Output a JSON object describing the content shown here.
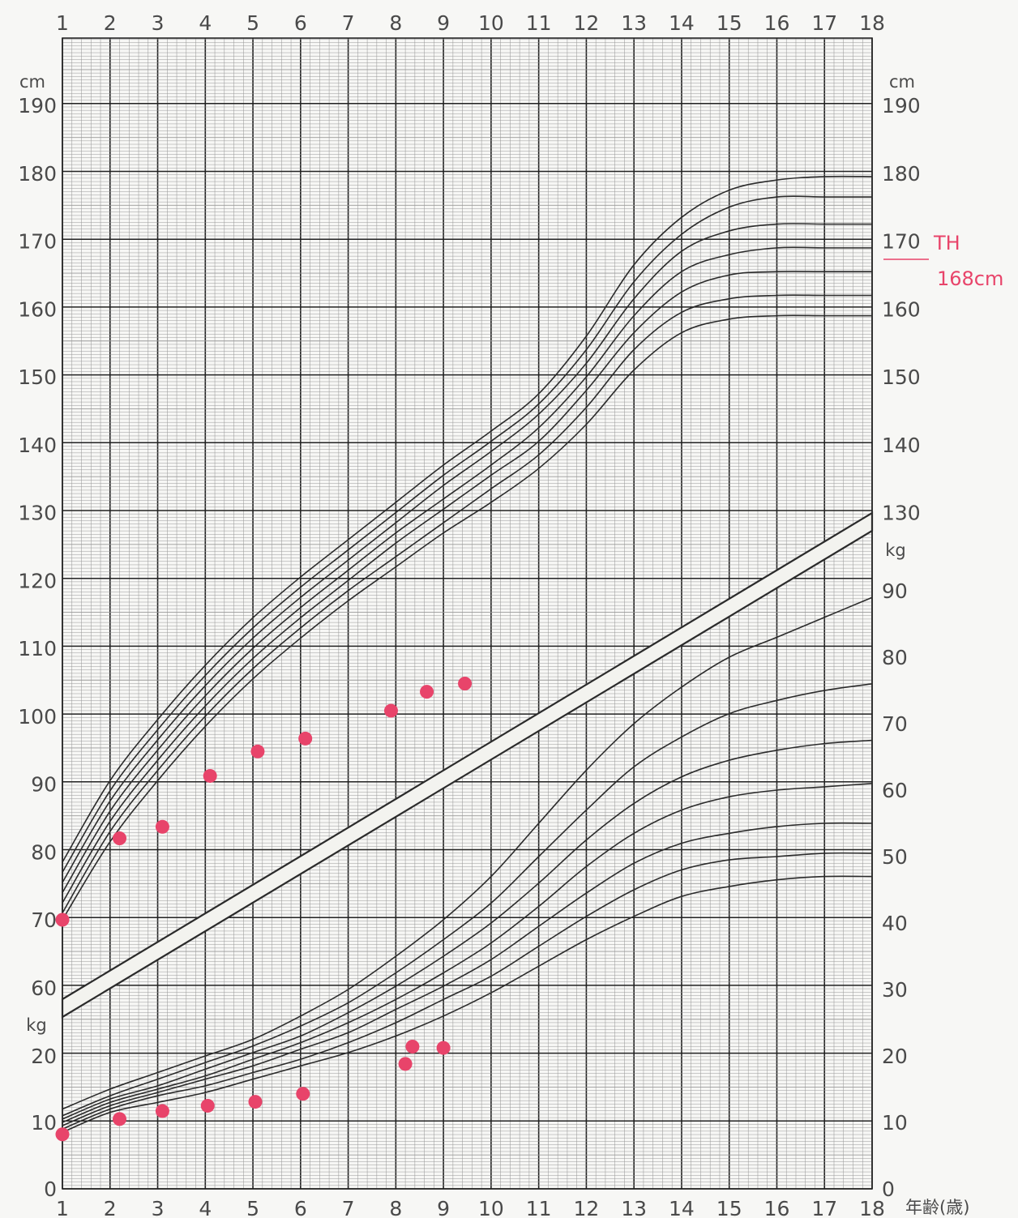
{
  "chart_data": {
    "type": "line",
    "title": "",
    "x_axis": {
      "label": "年齢(歳)",
      "range": [
        1,
        18
      ],
      "ticks": [
        "1",
        "2",
        "3",
        "4",
        "5",
        "6",
        "7",
        "8",
        "9",
        "10",
        "11",
        "12",
        "13",
        "14",
        "15",
        "16",
        "17",
        "18"
      ]
    },
    "height_axis": {
      "unit": "cm",
      "range": [
        60,
        190
      ],
      "ticks": [
        "60",
        "70",
        "80",
        "90",
        "100",
        "110",
        "120",
        "130",
        "140",
        "150",
        "160",
        "170",
        "180",
        "190"
      ],
      "right_ticks": [
        "130",
        "140",
        "150",
        "160",
        "170",
        "180",
        "190"
      ]
    },
    "weight_axis": {
      "unit": "kg",
      "range": [
        0,
        90
      ],
      "ticks": [
        "0",
        "10",
        "20"
      ],
      "right_ticks": [
        "0",
        "10",
        "20",
        "30",
        "40",
        "50",
        "60",
        "70",
        "80",
        "90"
      ]
    },
    "grid": true,
    "height_percentile_curves": [
      [
        [
          1,
          78.5
        ],
        [
          2,
          90.5
        ],
        [
          3,
          99.5
        ],
        [
          4,
          107.5
        ],
        [
          5,
          114.5
        ],
        [
          6,
          120.5
        ],
        [
          7,
          126
        ],
        [
          8,
          131.5
        ],
        [
          9,
          137
        ],
        [
          10,
          142
        ],
        [
          11,
          147.5
        ],
        [
          12,
          156
        ],
        [
          13,
          166.5
        ],
        [
          14,
          173.5
        ],
        [
          15,
          177.5
        ],
        [
          16,
          179
        ],
        [
          17,
          179.5
        ],
        [
          18,
          179.5
        ]
      ],
      [
        [
          1,
          77
        ],
        [
          2,
          89
        ],
        [
          3,
          98
        ],
        [
          4,
          106
        ],
        [
          5,
          113
        ],
        [
          6,
          119
        ],
        [
          7,
          124.5
        ],
        [
          8,
          130
        ],
        [
          9,
          135.5
        ],
        [
          10,
          140.5
        ],
        [
          11,
          146
        ],
        [
          12,
          154
        ],
        [
          13,
          164
        ],
        [
          14,
          171
        ],
        [
          15,
          175
        ],
        [
          16,
          176.5
        ],
        [
          17,
          176.5
        ],
        [
          18,
          176.5
        ]
      ],
      [
        [
          1,
          75.5
        ],
        [
          2,
          87.5
        ],
        [
          3,
          96.5
        ],
        [
          4,
          104.5
        ],
        [
          5,
          111.5
        ],
        [
          6,
          117.5
        ],
        [
          7,
          123
        ],
        [
          8,
          128.5
        ],
        [
          9,
          134
        ],
        [
          10,
          139
        ],
        [
          11,
          144.5
        ],
        [
          12,
          152
        ],
        [
          13,
          161.5
        ],
        [
          14,
          168.5
        ],
        [
          15,
          171.5
        ],
        [
          16,
          172.5
        ],
        [
          17,
          172.5
        ],
        [
          18,
          172.5
        ]
      ],
      [
        [
          1,
          74
        ],
        [
          2,
          86
        ],
        [
          3,
          95
        ],
        [
          4,
          103
        ],
        [
          5,
          110
        ],
        [
          6,
          116
        ],
        [
          7,
          121.5
        ],
        [
          8,
          127
        ],
        [
          9,
          132
        ],
        [
          10,
          137
        ],
        [
          11,
          142.5
        ],
        [
          12,
          150
        ],
        [
          13,
          159
        ],
        [
          14,
          165.5
        ],
        [
          15,
          168
        ],
        [
          16,
          169
        ],
        [
          17,
          169
        ],
        [
          18,
          169
        ]
      ],
      [
        [
          1,
          72.5
        ],
        [
          2,
          84.5
        ],
        [
          3,
          93.5
        ],
        [
          4,
          101.5
        ],
        [
          5,
          108.5
        ],
        [
          6,
          114.5
        ],
        [
          7,
          120
        ],
        [
          8,
          125.5
        ],
        [
          9,
          130.5
        ],
        [
          10,
          135.5
        ],
        [
          11,
          140.5
        ],
        [
          12,
          148
        ],
        [
          13,
          156.5
        ],
        [
          14,
          162.5
        ],
        [
          15,
          165
        ],
        [
          16,
          165.5
        ],
        [
          17,
          165.5
        ],
        [
          18,
          165.5
        ]
      ],
      [
        [
          1,
          71
        ],
        [
          2,
          83
        ],
        [
          3,
          92
        ],
        [
          4,
          100
        ],
        [
          5,
          107
        ],
        [
          6,
          113
        ],
        [
          7,
          118.5
        ],
        [
          8,
          123.5
        ],
        [
          9,
          128.5
        ],
        [
          10,
          133.5
        ],
        [
          11,
          138.5
        ],
        [
          12,
          145.5
        ],
        [
          13,
          154
        ],
        [
          14,
          159.5
        ],
        [
          15,
          161.5
        ],
        [
          16,
          162
        ],
        [
          17,
          162
        ],
        [
          18,
          162
        ]
      ],
      [
        [
          1,
          70
        ],
        [
          2,
          81.5
        ],
        [
          3,
          90.5
        ],
        [
          4,
          98.5
        ],
        [
          5,
          105.5
        ],
        [
          6,
          111.5
        ],
        [
          7,
          117
        ],
        [
          8,
          122
        ],
        [
          9,
          127
        ],
        [
          10,
          131.5
        ],
        [
          11,
          136.5
        ],
        [
          12,
          143
        ],
        [
          13,
          151
        ],
        [
          14,
          156.5
        ],
        [
          15,
          158.5
        ],
        [
          16,
          159
        ],
        [
          17,
          159
        ],
        [
          18,
          159
        ]
      ]
    ],
    "weight_percentile_curves": [
      [
        [
          1,
          12
        ],
        [
          2,
          15
        ],
        [
          3,
          17.5
        ],
        [
          4,
          20
        ],
        [
          5,
          22.5
        ],
        [
          6,
          26
        ],
        [
          7,
          30
        ],
        [
          8,
          35
        ],
        [
          9,
          40.5
        ],
        [
          10,
          47
        ],
        [
          11,
          55
        ],
        [
          12,
          63
        ],
        [
          13,
          70
        ],
        [
          14,
          75.5
        ],
        [
          15,
          80
        ],
        [
          16,
          83
        ],
        [
          17,
          86
        ],
        [
          18,
          89
        ]
      ],
      [
        [
          1,
          11
        ],
        [
          2,
          14
        ],
        [
          3,
          16.5
        ],
        [
          4,
          19
        ],
        [
          5,
          21.5
        ],
        [
          6,
          24.5
        ],
        [
          7,
          28
        ],
        [
          8,
          32.5
        ],
        [
          9,
          37.5
        ],
        [
          10,
          43
        ],
        [
          11,
          50
        ],
        [
          12,
          57
        ],
        [
          13,
          63.5
        ],
        [
          14,
          68
        ],
        [
          15,
          71.5
        ],
        [
          16,
          73.5
        ],
        [
          17,
          75
        ],
        [
          18,
          76
        ]
      ],
      [
        [
          1,
          10.5
        ],
        [
          2,
          13.5
        ],
        [
          3,
          15.5
        ],
        [
          4,
          18
        ],
        [
          5,
          20.5
        ],
        [
          6,
          23
        ],
        [
          7,
          26.5
        ],
        [
          8,
          30.5
        ],
        [
          9,
          35
        ],
        [
          10,
          40
        ],
        [
          11,
          46
        ],
        [
          12,
          52.5
        ],
        [
          13,
          58
        ],
        [
          14,
          62
        ],
        [
          15,
          64.5
        ],
        [
          16,
          66
        ],
        [
          17,
          67
        ],
        [
          18,
          67.5
        ]
      ],
      [
        [
          1,
          10
        ],
        [
          2,
          13
        ],
        [
          3,
          15
        ],
        [
          4,
          17
        ],
        [
          5,
          19.5
        ],
        [
          6,
          22
        ],
        [
          7,
          25
        ],
        [
          8,
          28.5
        ],
        [
          9,
          32.5
        ],
        [
          10,
          37
        ],
        [
          11,
          42.5
        ],
        [
          12,
          48.5
        ],
        [
          13,
          53.5
        ],
        [
          14,
          57
        ],
        [
          15,
          59
        ],
        [
          16,
          60
        ],
        [
          17,
          60.5
        ],
        [
          18,
          61
        ]
      ],
      [
        [
          1,
          9.5
        ],
        [
          2,
          12.5
        ],
        [
          3,
          14.5
        ],
        [
          4,
          16.5
        ],
        [
          5,
          18.5
        ],
        [
          6,
          21
        ],
        [
          7,
          23.5
        ],
        [
          8,
          27
        ],
        [
          9,
          30.5
        ],
        [
          10,
          34.5
        ],
        [
          11,
          39.5
        ],
        [
          12,
          44.5
        ],
        [
          13,
          49
        ],
        [
          14,
          52
        ],
        [
          15,
          53.5
        ],
        [
          16,
          54.5
        ],
        [
          17,
          55
        ],
        [
          18,
          55
        ]
      ],
      [
        [
          1,
          9
        ],
        [
          2,
          12
        ],
        [
          3,
          14
        ],
        [
          4,
          15.5
        ],
        [
          5,
          17.5
        ],
        [
          6,
          19.5
        ],
        [
          7,
          22
        ],
        [
          8,
          25
        ],
        [
          9,
          28.5
        ],
        [
          10,
          32
        ],
        [
          11,
          36.5
        ],
        [
          12,
          41
        ],
        [
          13,
          45
        ],
        [
          14,
          48
        ],
        [
          15,
          49.5
        ],
        [
          16,
          50
        ],
        [
          17,
          50.5
        ],
        [
          18,
          50.5
        ]
      ],
      [
        [
          1,
          8.5
        ],
        [
          2,
          11.5
        ],
        [
          3,
          13
        ],
        [
          4,
          14.5
        ],
        [
          5,
          16.5
        ],
        [
          6,
          18.5
        ],
        [
          7,
          20.5
        ],
        [
          8,
          23
        ],
        [
          9,
          26
        ],
        [
          10,
          29.5
        ],
        [
          11,
          33.5
        ],
        [
          12,
          37.5
        ],
        [
          13,
          41
        ],
        [
          14,
          44
        ],
        [
          15,
          45.5
        ],
        [
          16,
          46.5
        ],
        [
          17,
          47
        ],
        [
          18,
          47
        ]
      ]
    ],
    "height_points": [
      [
        1,
        70
      ],
      [
        2.2,
        82
      ],
      [
        3.1,
        83.7
      ],
      [
        4.1,
        91.2
      ],
      [
        5.1,
        94.8
      ],
      [
        6.1,
        96.7
      ],
      [
        7.9,
        100.8
      ],
      [
        8.65,
        103.6
      ],
      [
        9.45,
        104.8
      ]
    ],
    "weight_points": [
      [
        1,
        8.2
      ],
      [
        2.2,
        10.5
      ],
      [
        3.1,
        11.7
      ],
      [
        4.05,
        12.5
      ],
      [
        5.05,
        13.1
      ],
      [
        6.05,
        14.3
      ],
      [
        8.2,
        18.8
      ],
      [
        8.35,
        21.4
      ],
      [
        9.0,
        21.2
      ]
    ],
    "target_height": {
      "label_top": "TH",
      "label_bottom": "168cm",
      "value": 168
    }
  },
  "colors": {
    "background": "#f7f7f5",
    "grid_fine": "#9a9a9a",
    "grid_major": "#222222",
    "curve": "#2b2b2b",
    "points": "#e8446a",
    "band": "#f3f3ef"
  }
}
